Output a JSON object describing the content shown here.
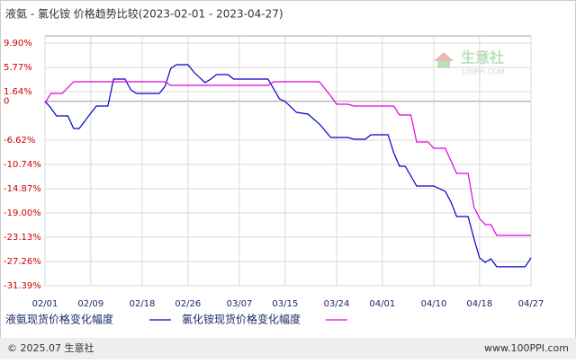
{
  "chart_data": {
    "type": "line",
    "title": "液氨 - 氯化铵 价格趋势比较(2023-02-01 - 2023-04-27)",
    "xlim": [
      "02/01",
      "04/27"
    ],
    "xticks": [
      "02/01",
      "02/09",
      "02/18",
      "02/26",
      "03/07",
      "03/15",
      "03/24",
      "04/01",
      "04/10",
      "04/18",
      "04/27"
    ],
    "ylim": [
      -31.39,
      9.9
    ],
    "yticks": [
      {
        "value": 9.9,
        "label": "9.90%"
      },
      {
        "value": 5.77,
        "label": "5.77%"
      },
      {
        "value": 1.64,
        "label": "1.64%"
      },
      0,
      {
        "value": -6.62,
        "label": "-6.62%"
      },
      {
        "value": -10.74,
        "label": "-10.74%"
      },
      {
        "value": -14.87,
        "label": "-14.87%"
      },
      {
        "value": -19.0,
        "label": "-19.00%"
      },
      {
        "value": -23.13,
        "label": "-23.13%"
      },
      {
        "value": -27.26,
        "label": "-27.26%"
      },
      {
        "value": -31.39,
        "label": "-31.39%"
      }
    ],
    "grid": true,
    "series": [
      {
        "name": "液氨现货价格变化幅度",
        "color": "#0000cc",
        "x": [
          "02/01",
          "02/02",
          "02/03",
          "02/05",
          "02/06",
          "02/07",
          "02/09",
          "02/10",
          "02/12",
          "02/13",
          "02/15",
          "02/16",
          "02/17",
          "02/21",
          "02/22",
          "02/23",
          "02/24",
          "02/26",
          "02/27",
          "02/28",
          "03/01",
          "03/02",
          "03/03",
          "03/05",
          "03/06",
          "03/12",
          "03/14",
          "03/15",
          "03/17",
          "03/19",
          "03/21",
          "03/23",
          "03/26",
          "03/27",
          "03/29",
          "03/30",
          "04/02",
          "04/03",
          "04/04",
          "04/05",
          "04/06",
          "04/07",
          "04/10",
          "04/12",
          "04/13",
          "04/14",
          "04/16",
          "04/17",
          "04/18",
          "04/19",
          "04/20",
          "04/21",
          "04/26",
          "04/27"
        ],
        "values": [
          0,
          -1.11,
          -2.48,
          -2.48,
          -4.63,
          -4.63,
          -2.03,
          -0.8,
          -0.8,
          3.78,
          3.78,
          1.95,
          1.34,
          1.34,
          2.56,
          5.62,
          6.23,
          6.23,
          5.01,
          4.09,
          3.17,
          3.78,
          4.55,
          4.55,
          3.78,
          3.78,
          0.42,
          -0.04,
          -1.87,
          -2.18,
          -3.86,
          -6.15,
          -6.15,
          -6.46,
          -6.46,
          -5.7,
          -5.7,
          -8.75,
          -11.05,
          -11.05,
          -12.73,
          -14.41,
          -14.41,
          -15.33,
          -17.16,
          -19.61,
          -19.61,
          -23.28,
          -26.64,
          -27.41,
          -26.8,
          -28.17,
          -28.17,
          -26.64
        ]
      },
      {
        "name": "氯化铵现货价格变化幅度",
        "color": "#e000e0",
        "x": [
          "02/01",
          "02/02",
          "02/04",
          "02/06",
          "02/22",
          "02/23",
          "03/12",
          "03/13",
          "03/21",
          "03/23",
          "03/24",
          "03/26",
          "03/27",
          "04/03",
          "04/04",
          "04/06",
          "04/07",
          "04/09",
          "04/10",
          "04/12",
          "04/14",
          "04/16",
          "04/17",
          "04/18",
          "04/19",
          "04/20",
          "04/21",
          "04/27"
        ],
        "values": [
          -0.34,
          1.34,
          1.34,
          3.33,
          3.33,
          2.71,
          2.71,
          3.33,
          3.33,
          0.88,
          -0.5,
          -0.5,
          -0.8,
          -0.8,
          -2.33,
          -2.33,
          -6.92,
          -6.92,
          -7.99,
          -7.99,
          -12.27,
          -12.27,
          -17.93,
          -19.92,
          -20.99,
          -20.99,
          -22.82,
          -22.82
        ]
      }
    ],
    "watermark": {
      "name": "生意社",
      "site": "100PPI.COM"
    },
    "footer": {
      "left": "© 2025.07 生意社",
      "right": "www.100PPI.com"
    }
  }
}
